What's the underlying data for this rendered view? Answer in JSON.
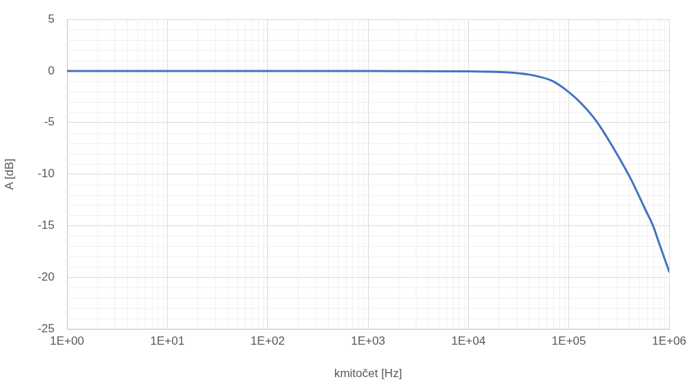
{
  "chart_data": {
    "type": "line",
    "xlabel": "kmitočet [Hz]",
    "ylabel": "A [dB]",
    "x": [
      1,
      10,
      100,
      1000,
      10000,
      26300,
      44700,
      69000,
      97500,
      130000,
      189000,
      288000,
      418000,
      574000,
      690000,
      789000,
      1000000
    ],
    "series": [
      {
        "color": "#4472c4",
        "values": [
          0,
          0,
          0,
          0,
          -0.04,
          -0.15,
          -0.43,
          -0.98,
          -1.96,
          -3.04,
          -4.89,
          -7.72,
          -10.54,
          -13.37,
          -15.0,
          -16.63,
          -19.46
        ]
      }
    ],
    "log": "x",
    "xlim": [
      1,
      1000000
    ],
    "xticks": [
      {
        "value": 1,
        "label": "1E+00"
      },
      {
        "value": 10,
        "label": "1E+01"
      },
      {
        "value": 100,
        "label": "1E+02"
      },
      {
        "value": 1000,
        "label": "1E+03"
      },
      {
        "value": 10000,
        "label": "1E+04"
      },
      {
        "value": 100000,
        "label": "1E+05"
      },
      {
        "value": 1000000,
        "label": "1E+06"
      }
    ],
    "ylim": [
      -25,
      5
    ],
    "yticks": [
      -25,
      -20,
      -15,
      -10,
      -5,
      0,
      5
    ],
    "grid": true,
    "legend": false,
    "marker": "none",
    "line_style": "solid"
  }
}
